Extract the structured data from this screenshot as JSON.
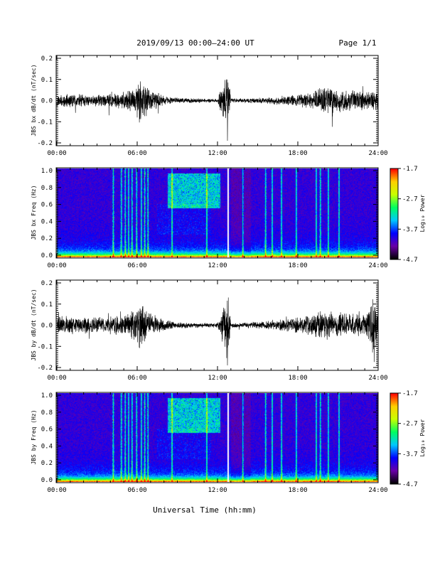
{
  "header": {
    "title": "2019/09/13  00:00–24:00 UT",
    "page": "Page 1/1"
  },
  "xaxis": {
    "label": "Universal Time (hh:mm)",
    "ticks": [
      "00:00",
      "06:00",
      "12:00",
      "18:00",
      "24:00"
    ],
    "range_hours": [
      0,
      24
    ]
  },
  "colorbar": {
    "label": "Log₁₀ Power",
    "ticks": [
      "-1.7",
      "-2.7",
      "-3.7",
      "-4.7"
    ],
    "range": [
      -4.7,
      -1.7
    ],
    "colors": [
      "#000000",
      "#6a00a8",
      "#0000ff",
      "#00c8ff",
      "#00ff60",
      "#c8ff00",
      "#ffd000",
      "#ff0000"
    ]
  },
  "chart_data": [
    {
      "type": "line",
      "ylabel": "JBS bx dB/dt (nT/sec)",
      "ylim": [
        -0.2,
        0.2
      ],
      "yticks": [
        "0.2",
        "0.1",
        "0.0",
        "-0.1",
        "-0.2"
      ],
      "x_hours": [
        0,
        1,
        2,
        3,
        4,
        5,
        5.8,
        6.2,
        6.5,
        7,
        8,
        9,
        10,
        11,
        12,
        12.75,
        13,
        14,
        15,
        16,
        17,
        18,
        19,
        19.5,
        20,
        20.5,
        21,
        22,
        23,
        24
      ],
      "envelope": [
        0.03,
        0.03,
        0.025,
        0.025,
        0.03,
        0.035,
        0.06,
        0.1,
        0.08,
        0.05,
        0.02,
        0.012,
        0.01,
        0.008,
        0.008,
        0.15,
        0.01,
        0.01,
        0.012,
        0.015,
        0.02,
        0.025,
        0.035,
        0.05,
        0.07,
        0.06,
        0.05,
        0.045,
        0.04,
        0.04
      ]
    },
    {
      "type": "heatmap",
      "ylabel": "JBS bx Freq (Hz)",
      "ylim": [
        0.0,
        1.0
      ],
      "yticks": [
        "1.0",
        "0.8",
        "0.6",
        "0.4",
        "0.2",
        "0.0"
      ]
    },
    {
      "type": "line",
      "ylabel": "JBS by dB/dt (nT/sec)",
      "ylim": [
        -0.2,
        0.2
      ],
      "yticks": [
        "0.2",
        "0.1",
        "0.0",
        "-0.1",
        "-0.2"
      ],
      "x_hours": [
        0,
        1,
        2,
        3,
        4,
        5,
        5.8,
        6.2,
        6.5,
        7,
        8,
        9,
        10,
        11,
        12,
        12.75,
        13,
        14,
        15,
        16,
        17,
        18,
        19,
        19.5,
        20,
        20.5,
        21,
        22,
        23,
        23.8,
        24
      ],
      "envelope": [
        0.04,
        0.04,
        0.035,
        0.035,
        0.04,
        0.045,
        0.07,
        0.12,
        0.09,
        0.05,
        0.025,
        0.015,
        0.012,
        0.01,
        0.01,
        0.15,
        0.012,
        0.012,
        0.015,
        0.02,
        0.025,
        0.035,
        0.045,
        0.06,
        0.065,
        0.06,
        0.055,
        0.05,
        0.045,
        0.16,
        0.04
      ]
    },
    {
      "type": "heatmap",
      "ylabel": "JBS by Freq (Hz)",
      "ylim": [
        0.0,
        1.0
      ],
      "yticks": [
        "1.0",
        "0.8",
        "0.6",
        "0.4",
        "0.2",
        "0.0"
      ]
    }
  ]
}
